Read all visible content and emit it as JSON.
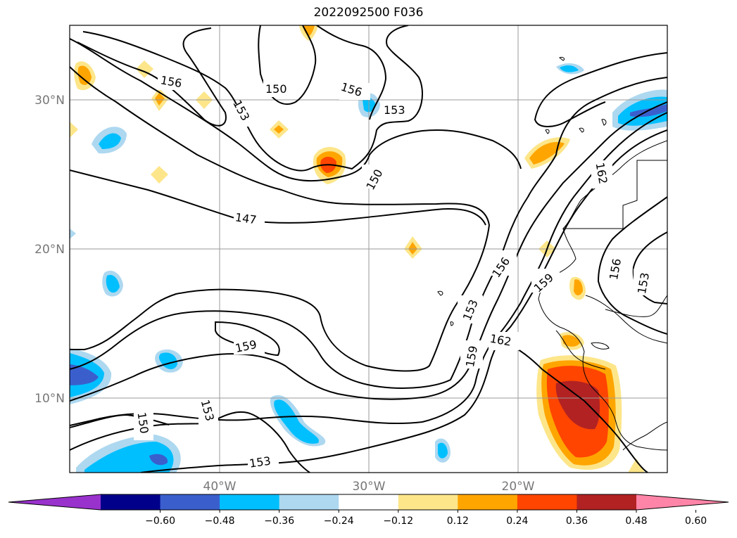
{
  "title": "2022092500 F036",
  "map": {
    "lat_labels": [
      "30°N",
      "20°N",
      "10°N"
    ],
    "lon_labels": [
      "40°W",
      "30°W",
      "20°W"
    ],
    "contour_labels": [
      "156",
      "150",
      "156",
      "153",
      "153",
      "150",
      "147",
      "162",
      "156",
      "159",
      "153",
      "156",
      "153",
      "159",
      "159",
      "162",
      "153",
      "150",
      "153"
    ]
  },
  "colorbar": {
    "ticks": [
      "−0.60",
      "−0.48",
      "−0.36",
      "−0.24",
      "−0.12",
      "0.12",
      "0.24",
      "0.36",
      "0.48",
      "0.60"
    ],
    "colors": [
      "#9932cc",
      "#00008b",
      "#3a5fcd",
      "#00bfff",
      "#add8f0",
      "#ffffff",
      "#fde68a",
      "#ffa500",
      "#ff4500",
      "#b22222",
      "#ff85a8"
    ]
  }
}
